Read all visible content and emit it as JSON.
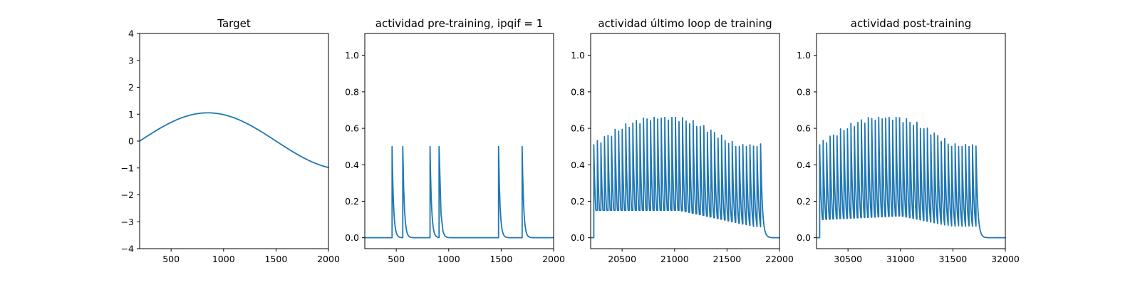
{
  "colors": {
    "line": "#1f77b4",
    "axes": "#000000"
  },
  "chart_data": [
    {
      "type": "line",
      "title": "Target",
      "xlim": [
        200,
        2000
      ],
      "ylim": [
        -4,
        4
      ],
      "xticks": [
        500,
        1000,
        1500,
        2000
      ],
      "yticks": [
        -4,
        -3,
        -2,
        -1,
        0,
        1,
        2,
        3,
        4
      ],
      "xtick_labels": [
        "500",
        "1000",
        "1500",
        "2000"
      ],
      "ytick_labels": [
        "−4",
        "−3",
        "−2",
        "−1",
        "0",
        "1",
        "2",
        "3",
        "4"
      ],
      "series": [
        {
          "name": "target",
          "kind": "sine",
          "amplitude": 1.05,
          "period": 2600,
          "peak_x": 850,
          "x_range": [
            200,
            2000
          ]
        }
      ]
    },
    {
      "type": "line",
      "title": "actividad pre-training, ipqif = 1",
      "xlim": [
        200,
        2000
      ],
      "ylim": [
        -0.06,
        1.12
      ],
      "xticks": [
        500,
        1000,
        1500,
        2000
      ],
      "yticks": [
        0.0,
        0.2,
        0.4,
        0.6,
        0.8,
        1.0
      ],
      "xtick_labels": [
        "500",
        "1000",
        "1500",
        "2000"
      ],
      "ytick_labels": [
        "0.0",
        "0.2",
        "0.4",
        "0.6",
        "0.8",
        "1.0"
      ],
      "series": [
        {
          "name": "actividad",
          "kind": "spikes",
          "x_range": [
            200,
            2000
          ],
          "tau": 14,
          "spike_times": [
            460,
            562,
            822,
            908,
            1475,
            1700
          ],
          "spike_peaks": [
            0.5,
            0.5,
            0.5,
            0.5,
            0.5,
            0.5
          ]
        }
      ]
    },
    {
      "type": "line",
      "title": "actividad último loop de training",
      "xlim": [
        20200,
        22000
      ],
      "ylim": [
        -0.06,
        1.12
      ],
      "xticks": [
        20500,
        21000,
        21500,
        22000
      ],
      "yticks": [
        0.0,
        0.2,
        0.4,
        0.6,
        0.8,
        1.0
      ],
      "xtick_labels": [
        "20500",
        "21000",
        "21500",
        "22000"
      ],
      "ytick_labels": [
        "0.0",
        "0.2",
        "0.4",
        "0.6",
        "0.8",
        "1.0"
      ],
      "series": [
        {
          "name": "actividad",
          "kind": "burst",
          "x_range": [
            20200,
            22000
          ],
          "start": 20230,
          "end": 21820,
          "n_spikes": 48,
          "peak_min": 0.5,
          "peak_max": 0.66,
          "trough_start": 0.15,
          "trough_mid": 0.15,
          "trough_end": 0.05,
          "tau": 16
        }
      ]
    },
    {
      "type": "line",
      "title": "actividad post-training",
      "xlim": [
        30200,
        32000
      ],
      "ylim": [
        -0.06,
        1.12
      ],
      "xticks": [
        30500,
        31000,
        31500,
        32000
      ],
      "yticks": [
        0.0,
        0.2,
        0.4,
        0.6,
        0.8,
        1.0
      ],
      "xtick_labels": [
        "30500",
        "31000",
        "31500",
        "32000"
      ],
      "ytick_labels": [
        "0.0",
        "0.2",
        "0.4",
        "0.6",
        "0.8",
        "1.0"
      ],
      "series": [
        {
          "name": "actividad",
          "kind": "burst",
          "x_range": [
            30200,
            32000
          ],
          "start": 30230,
          "end": 31720,
          "n_spikes": 46,
          "peak_min": 0.5,
          "peak_max": 0.66,
          "trough_start": 0.1,
          "trough_mid": 0.12,
          "trough_end": 0.03,
          "tau": 16
        }
      ]
    }
  ]
}
